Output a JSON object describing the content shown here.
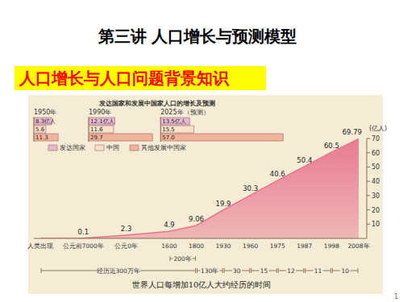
{
  "page": {
    "title": "第三讲 人口增长与预测模型",
    "subtitle": "人口增长与人口问题背景知识",
    "page_number": "1"
  },
  "chart_data": [
    {
      "type": "area",
      "title": "世界人口每增加10亿人大约经历的时间",
      "y_label": "(亿人)",
      "categories": [
        "人类出现",
        "公元前7000年",
        "公元0年",
        "1600",
        "1800",
        "1930",
        "1960",
        "1975",
        "1987",
        "1998",
        "2008年"
      ],
      "values": [
        0,
        0.1,
        2.3,
        4.9,
        9.06,
        19.9,
        30.3,
        40.6,
        50.4,
        60.5,
        69.79
      ],
      "value_labels": [
        null,
        "0.1",
        "2.3",
        "4.9",
        "9.06",
        "19.9",
        "30.3",
        "40.6",
        "50.4",
        "60.5",
        "69.79"
      ],
      "data_labels": true,
      "color": "#e8758e",
      "ylim": [
        0,
        70
      ],
      "yticks": [
        10,
        20,
        30,
        40,
        50,
        60,
        70
      ],
      "intervals": [
        {
          "label": "经历近300万年",
          "from": "人类出现",
          "to": "1800"
        },
        {
          "label": "200年",
          "from": "1600",
          "to": "1800"
        },
        {
          "label": "130年",
          "from": "1800",
          "to": "1930"
        },
        {
          "label": "30",
          "from": "1930",
          "to": "1960"
        },
        {
          "label": "15",
          "from": "1960",
          "to": "1975"
        },
        {
          "label": "12",
          "from": "1975",
          "to": "1987"
        },
        {
          "label": "11",
          "from": "1987",
          "to": "1998"
        },
        {
          "label": "10",
          "from": "1998",
          "to": "2008年"
        }
      ]
    },
    {
      "type": "bar",
      "orientation": "horizontal",
      "title": "发达国家和发展中国家人口的增长及预测",
      "categories": [
        "1950年",
        "1990年",
        "2025年（预测）"
      ],
      "series": [
        {
          "name": "发达国家",
          "color": "#e6b8d0",
          "values": [
            8.3,
            12.1,
            13.5
          ],
          "value_labels": [
            "8.3亿人",
            "12.1亿人",
            "13.5亿人"
          ]
        },
        {
          "name": "中国",
          "color": "#f8e2c8",
          "values": [
            5.6,
            11.6,
            15.5
          ]
        },
        {
          "name": "其他发展中国家",
          "color": "#f2b498",
          "values": [
            11.3,
            29.7,
            57.0
          ],
          "value_labels": [
            "11.3",
            "29.7",
            "57.0"
          ]
        }
      ],
      "xlim": [
        0,
        60
      ],
      "tick_labels": false,
      "legend": "bottom",
      "data_labels": true
    }
  ]
}
